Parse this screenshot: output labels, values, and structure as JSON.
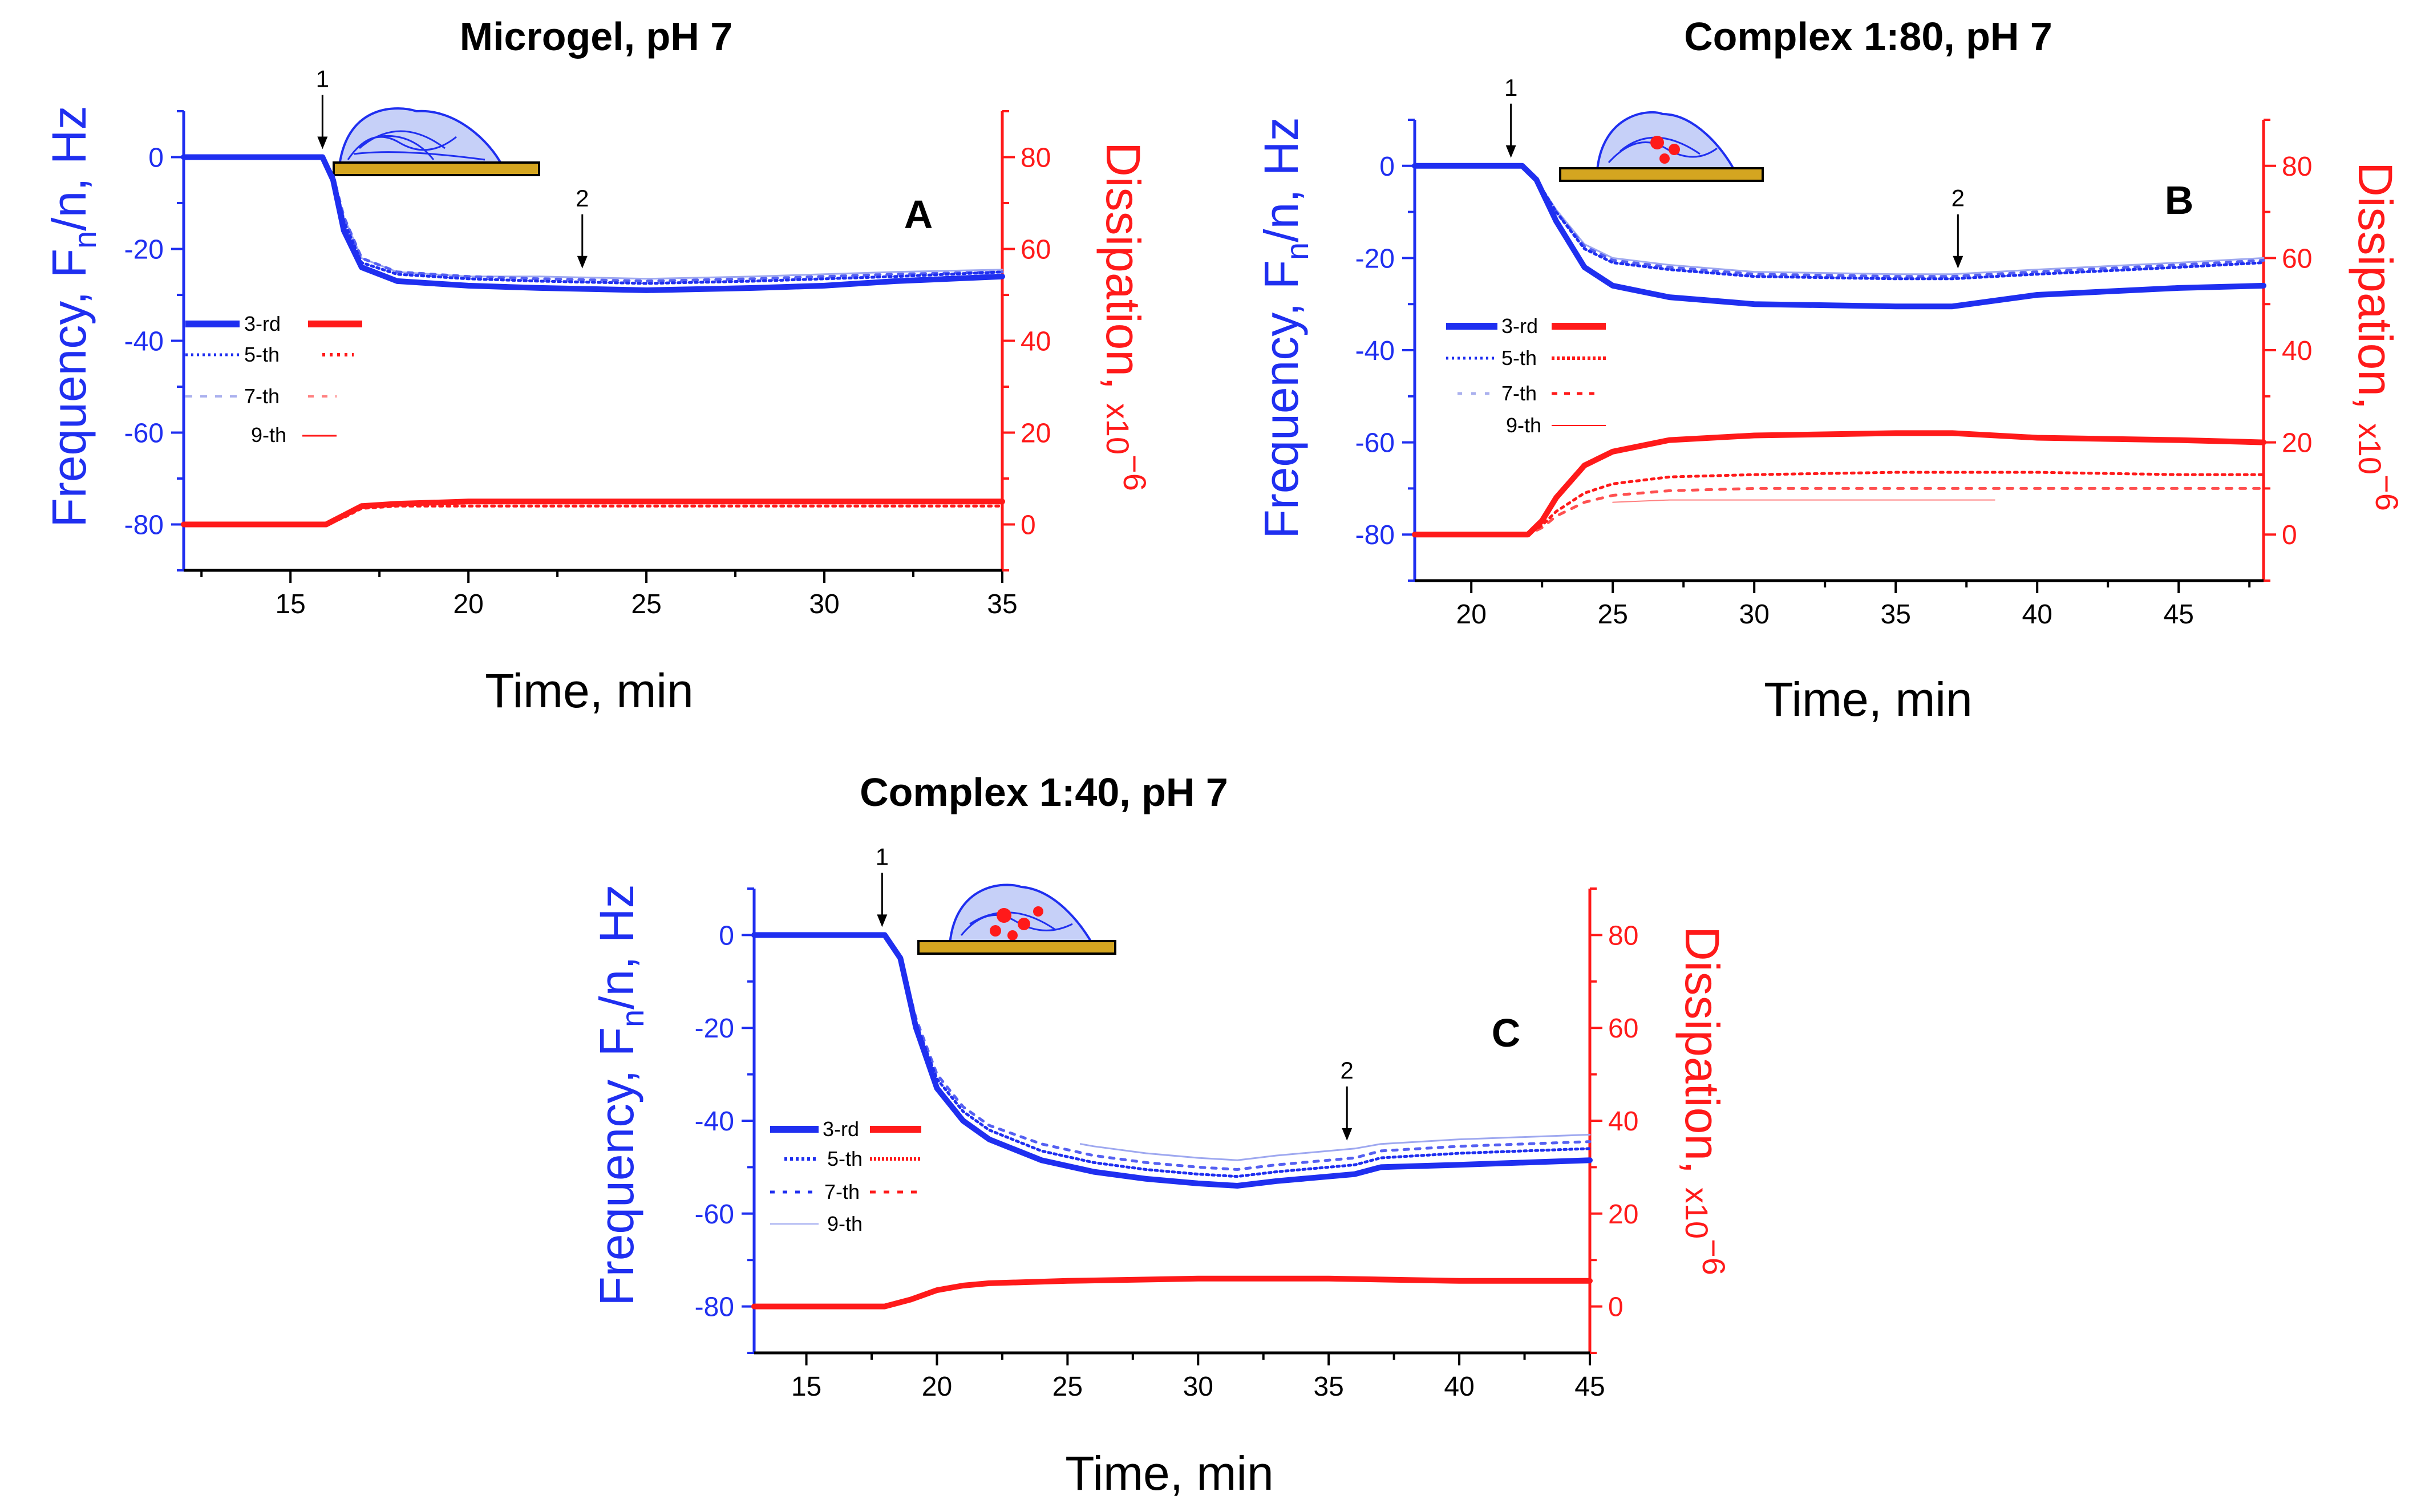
{
  "colors": {
    "frequency": "#1f2ff0",
    "dissipation": "#ff1a1a",
    "axis_black": "#000000",
    "substrate": "#d4a520"
  },
  "chart_data": [
    {
      "type": "line",
      "panel": "A",
      "title": "Microgel, pH 7",
      "xlabel": "Time, min",
      "ylabel_left": {
        "main": "Frequency, F",
        "sub": "n",
        "rest": "/n, Hz"
      },
      "ylabel_right": {
        "main": "Dissipation, ",
        "sup_prefix": "x10",
        "exp": "−6"
      },
      "xlim": [
        12,
        35
      ],
      "ylim_left": [
        -90,
        10
      ],
      "ylim_right": [
        -10,
        90
      ],
      "xticks": [
        15,
        20,
        25,
        30,
        35
      ],
      "yticks_left": [
        0,
        -20,
        -40,
        -60,
        -80
      ],
      "yticks_right": [
        0,
        20,
        40,
        60,
        80
      ],
      "legend": [
        "3-rd",
        "5-th",
        "7-th",
        "9-th"
      ],
      "annotations": [
        {
          "label": "1",
          "x": 15.9,
          "y": 0
        },
        {
          "label": "2",
          "x": 23.2,
          "y": -26
        }
      ],
      "frequency_series": [
        {
          "name": "3-rd",
          "x": [
            12,
            15,
            15.9,
            16.2,
            16.5,
            17,
            18,
            20,
            22,
            25,
            28,
            30,
            32,
            35
          ],
          "values": [
            0,
            0,
            0,
            -5,
            -16,
            -24,
            -27,
            -28,
            -28.5,
            -29,
            -28.5,
            -28,
            -27,
            -26
          ]
        },
        {
          "name": "5-th",
          "x": [
            12,
            15,
            15.9,
            16.2,
            16.5,
            17,
            18,
            20,
            22,
            25,
            28,
            30,
            32,
            35
          ],
          "values": [
            0,
            0,
            0,
            -4,
            -14,
            -23,
            -25.5,
            -26.5,
            -27,
            -27.5,
            -27,
            -26.5,
            -26,
            -25
          ]
        },
        {
          "name": "7-th",
          "x": [
            12,
            15,
            15.9,
            16.2,
            16.5,
            17,
            18,
            20,
            22,
            25,
            28,
            30,
            32,
            35
          ],
          "values": [
            0,
            0,
            0,
            -4,
            -13,
            -22,
            -25,
            -26,
            -26.5,
            -27,
            -26.5,
            -26,
            -25.5,
            -25
          ]
        },
        {
          "name": "9-th",
          "x": [
            12,
            15,
            15.9,
            16.2,
            16.5,
            17,
            18,
            20,
            22,
            25,
            28,
            30,
            32,
            35
          ],
          "values": [
            0,
            0,
            0,
            -4,
            -13,
            -22,
            -25,
            -26,
            -26,
            -26.5,
            -26,
            -25.5,
            -25,
            -24.5
          ]
        }
      ],
      "dissipation_series": [
        {
          "name": "3-rd",
          "x": [
            12,
            15,
            16,
            16.5,
            17,
            18,
            20,
            25,
            30,
            35
          ],
          "values": [
            0,
            0,
            0,
            2,
            4,
            4.5,
            5,
            5,
            5,
            5
          ]
        },
        {
          "name": "5-th",
          "x": [
            12,
            15,
            16,
            16.5,
            17,
            18,
            20,
            25,
            30,
            35
          ],
          "values": [
            0,
            0,
            0,
            1.5,
            3.5,
            4,
            4,
            4,
            4,
            4
          ]
        }
      ]
    },
    {
      "type": "line",
      "panel": "B",
      "title": "Complex 1:80, pH 7",
      "xlabel": "Time, min",
      "ylabel_left": {
        "main": "Frequency, F",
        "sub": "n",
        "rest": "/n, Hz"
      },
      "ylabel_right": {
        "main": "Dissipation, ",
        "sup_prefix": "x10",
        "exp": "−6"
      },
      "xlim": [
        18,
        48
      ],
      "ylim_left": [
        -90,
        10
      ],
      "ylim_right": [
        -10,
        90
      ],
      "xticks": [
        20,
        25,
        30,
        35,
        40,
        45
      ],
      "yticks_left": [
        0,
        -20,
        -40,
        -60,
        -80
      ],
      "yticks_right": [
        0,
        20,
        40,
        60,
        80
      ],
      "legend": [
        "3-rd",
        "5-th",
        "7-th",
        "9-th"
      ],
      "annotations": [
        {
          "label": "1",
          "x": 21.4,
          "y": 0
        },
        {
          "label": "2",
          "x": 37.2,
          "y": -24
        }
      ],
      "frequency_series": [
        {
          "name": "3-rd",
          "x": [
            18,
            21,
            21.8,
            22.3,
            23,
            24,
            25,
            27,
            30,
            35,
            37,
            40,
            45,
            48
          ],
          "values": [
            0,
            0,
            0,
            -3,
            -12,
            -22,
            -26,
            -28.5,
            -30,
            -30.5,
            -30.5,
            -28,
            -26.5,
            -26
          ]
        },
        {
          "name": "5-th",
          "x": [
            18,
            21,
            21.8,
            22.3,
            23,
            24,
            25,
            27,
            30,
            35,
            37,
            40,
            45,
            48
          ],
          "values": [
            0,
            0,
            0,
            -3,
            -10,
            -18,
            -21,
            -22.5,
            -24,
            -24.5,
            -24.5,
            -23.5,
            -22,
            -21
          ]
        },
        {
          "name": "7-th",
          "x": [
            18,
            21,
            21.8,
            22.3,
            23,
            24,
            25,
            27,
            30,
            35,
            37,
            40,
            45,
            48
          ],
          "values": [
            0,
            0,
            0,
            -3,
            -10,
            -17.5,
            -20.5,
            -22,
            -23.5,
            -24,
            -24,
            -23,
            -21.5,
            -20.5
          ]
        },
        {
          "name": "9-th",
          "x": [
            18,
            21,
            21.8,
            22.3,
            23,
            24,
            25,
            27,
            30,
            35,
            37,
            40,
            45,
            48
          ],
          "values": [
            0,
            0,
            0,
            -3,
            -9.5,
            -17,
            -20,
            -21.5,
            -23,
            -23.5,
            -23.5,
            -22.5,
            -21,
            -20
          ]
        }
      ],
      "dissipation_series": [
        {
          "name": "3-rd",
          "x": [
            18,
            21,
            22,
            22.5,
            23,
            24,
            25,
            27,
            30,
            35,
            37,
            40,
            45,
            48
          ],
          "values": [
            0,
            0,
            0,
            3,
            8,
            15,
            18,
            20.5,
            21.5,
            22,
            22,
            21,
            20.5,
            20
          ]
        },
        {
          "name": "5-th",
          "x": [
            18,
            21,
            22,
            22.5,
            23,
            24,
            25,
            27,
            30,
            35,
            40,
            45,
            48
          ],
          "values": [
            0,
            0,
            0,
            2,
            5,
            9,
            11,
            12.5,
            13,
            13.5,
            13.5,
            13,
            13
          ]
        },
        {
          "name": "7-th",
          "x": [
            18,
            21,
            22,
            22.5,
            23,
            24,
            25,
            27,
            30,
            35,
            40,
            45,
            48
          ],
          "values": [
            0,
            0,
            0,
            1.5,
            4,
            7,
            8.5,
            9.5,
            10,
            10,
            10,
            10,
            10
          ]
        },
        {
          "name": "9-th",
          "x": [
            25,
            27,
            30,
            35,
            38.5
          ],
          "values": [
            7,
            7.5,
            7.5,
            7.5,
            7.5
          ]
        }
      ]
    },
    {
      "type": "line",
      "panel": "C",
      "title": "Complex 1:40, pH 7",
      "xlabel": "Time, min",
      "ylabel_left": {
        "main": "Frequency, F",
        "sub": "n",
        "rest": "/n, Hz"
      },
      "ylabel_right": {
        "main": "Dissipation, ",
        "sup_prefix": "x10",
        "exp": "−6"
      },
      "xlim": [
        13,
        45
      ],
      "ylim_left": [
        -90,
        10
      ],
      "ylim_right": [
        -10,
        90
      ],
      "xticks": [
        15,
        20,
        25,
        30,
        35,
        40,
        45
      ],
      "yticks_left": [
        0,
        -20,
        -40,
        -60,
        -80
      ],
      "yticks_right": [
        0,
        20,
        40,
        60,
        80
      ],
      "legend": [
        "3-rd",
        "5-th",
        "7-th",
        "9-th"
      ],
      "annotations": [
        {
          "label": "1",
          "x": 17.9,
          "y": 0
        },
        {
          "label": "2",
          "x": 35.7,
          "y": -46
        }
      ],
      "frequency_series": [
        {
          "name": "3-rd",
          "x": [
            13,
            16,
            18,
            18.6,
            19.2,
            20,
            21,
            22,
            24,
            26,
            28,
            30,
            31.5,
            33,
            35,
            36,
            37,
            40,
            45
          ],
          "values": [
            0,
            0,
            0,
            -5,
            -20,
            -33,
            -40,
            -44,
            -48.5,
            -51,
            -52.5,
            -53.5,
            -54,
            -53,
            -52,
            -51.5,
            -50,
            -49.5,
            -48.5
          ]
        },
        {
          "name": "5-th",
          "x": [
            13,
            16,
            18,
            18.6,
            19.2,
            20,
            21,
            22,
            24,
            26,
            28,
            30,
            31.5,
            33,
            35,
            36,
            37,
            40,
            45
          ],
          "values": [
            0,
            0,
            0,
            -5,
            -19,
            -31,
            -38,
            -42,
            -46.5,
            -49,
            -50.5,
            -51.5,
            -52,
            -51,
            -50,
            -49.5,
            -48,
            -47,
            -46
          ]
        },
        {
          "name": "7-th",
          "x": [
            13,
            16,
            18,
            18.6,
            19.2,
            20,
            21,
            22,
            24,
            26,
            28,
            30,
            31.5,
            33,
            35,
            36,
            37,
            40,
            45
          ],
          "values": [
            0,
            0,
            0,
            -5,
            -18,
            -30,
            -37,
            -41,
            -45,
            -47.5,
            -49,
            -50,
            -50.5,
            -49.5,
            -48.5,
            -48,
            -46.5,
            -45.5,
            -44.5
          ]
        },
        {
          "name": "9-th",
          "x": [
            25.5,
            26,
            28,
            30,
            31.5,
            33,
            35,
            36,
            37,
            40,
            45
          ],
          "values": [
            -45,
            -45.5,
            -47,
            -48,
            -48.5,
            -47.5,
            -46.5,
            -46,
            -45,
            -44,
            -43
          ]
        }
      ],
      "dissipation_series": [
        {
          "name": "3-rd",
          "x": [
            13,
            16,
            18,
            19,
            20,
            21,
            22,
            25,
            30,
            35,
            40,
            45
          ],
          "values": [
            0,
            0,
            0,
            1.5,
            3.5,
            4.5,
            5,
            5.5,
            6,
            6,
            5.5,
            5.5
          ]
        }
      ]
    }
  ]
}
